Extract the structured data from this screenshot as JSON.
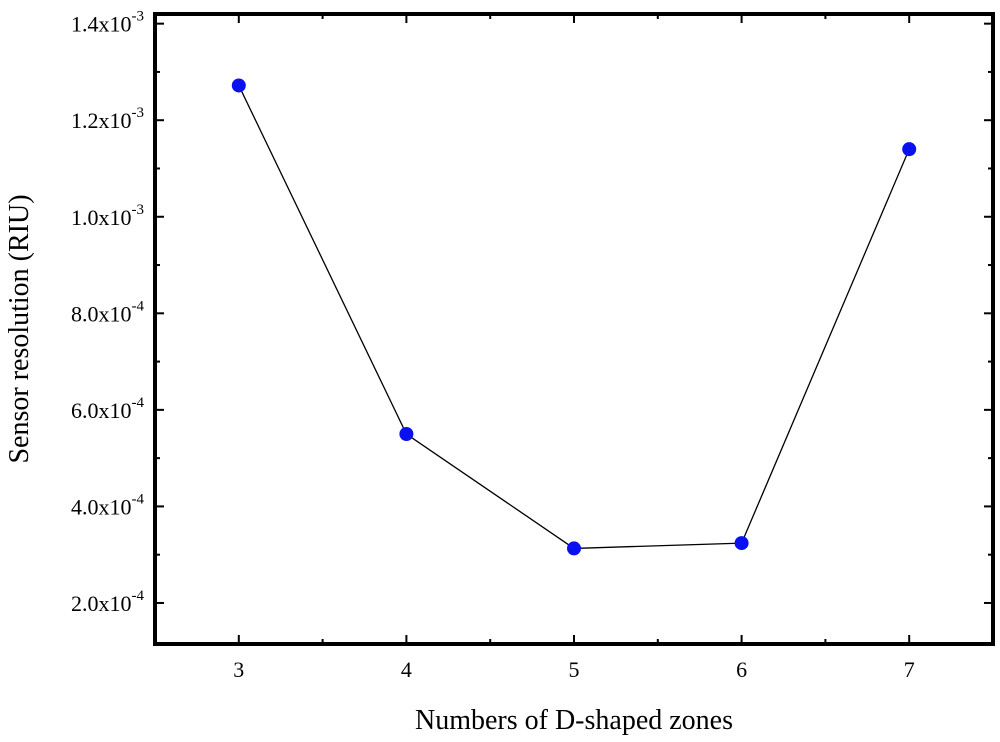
{
  "chart_data": {
    "type": "line",
    "title": "",
    "xlabel": "Numbers of D-shaped zones",
    "ylabel": "Sensor resolution (RIU)",
    "x": [
      3,
      4,
      5,
      6,
      7
    ],
    "series": [
      {
        "values": [
          0.001272,
          0.00055,
          0.000313,
          0.000324,
          0.00114
        ]
      }
    ],
    "xlim": [
      2.5,
      7.5
    ],
    "ylim": [
      0.000115,
      0.00142
    ],
    "xticks": [
      3,
      4,
      5,
      6,
      7
    ],
    "xtick_labels": [
      "3",
      "4",
      "5",
      "6",
      "7"
    ],
    "yticks": [
      0.0002,
      0.0004,
      0.0006,
      0.0008,
      0.001,
      0.0012,
      0.0014
    ],
    "ytick_labels": [
      {
        "mantissa": "2.0x10",
        "exponent": "-4"
      },
      {
        "mantissa": "4.0x10",
        "exponent": "-4"
      },
      {
        "mantissa": "6.0x10",
        "exponent": "-4"
      },
      {
        "mantissa": "8.0x10",
        "exponent": "-4"
      },
      {
        "mantissa": "1.0x10",
        "exponent": "-3"
      },
      {
        "mantissa": "1.2x10",
        "exponent": "-3"
      },
      {
        "mantissa": "1.4x10",
        "exponent": "-3"
      }
    ],
    "grid": false,
    "legend": "none",
    "marker_color": "#0a10f0",
    "line_color": "#000000"
  }
}
